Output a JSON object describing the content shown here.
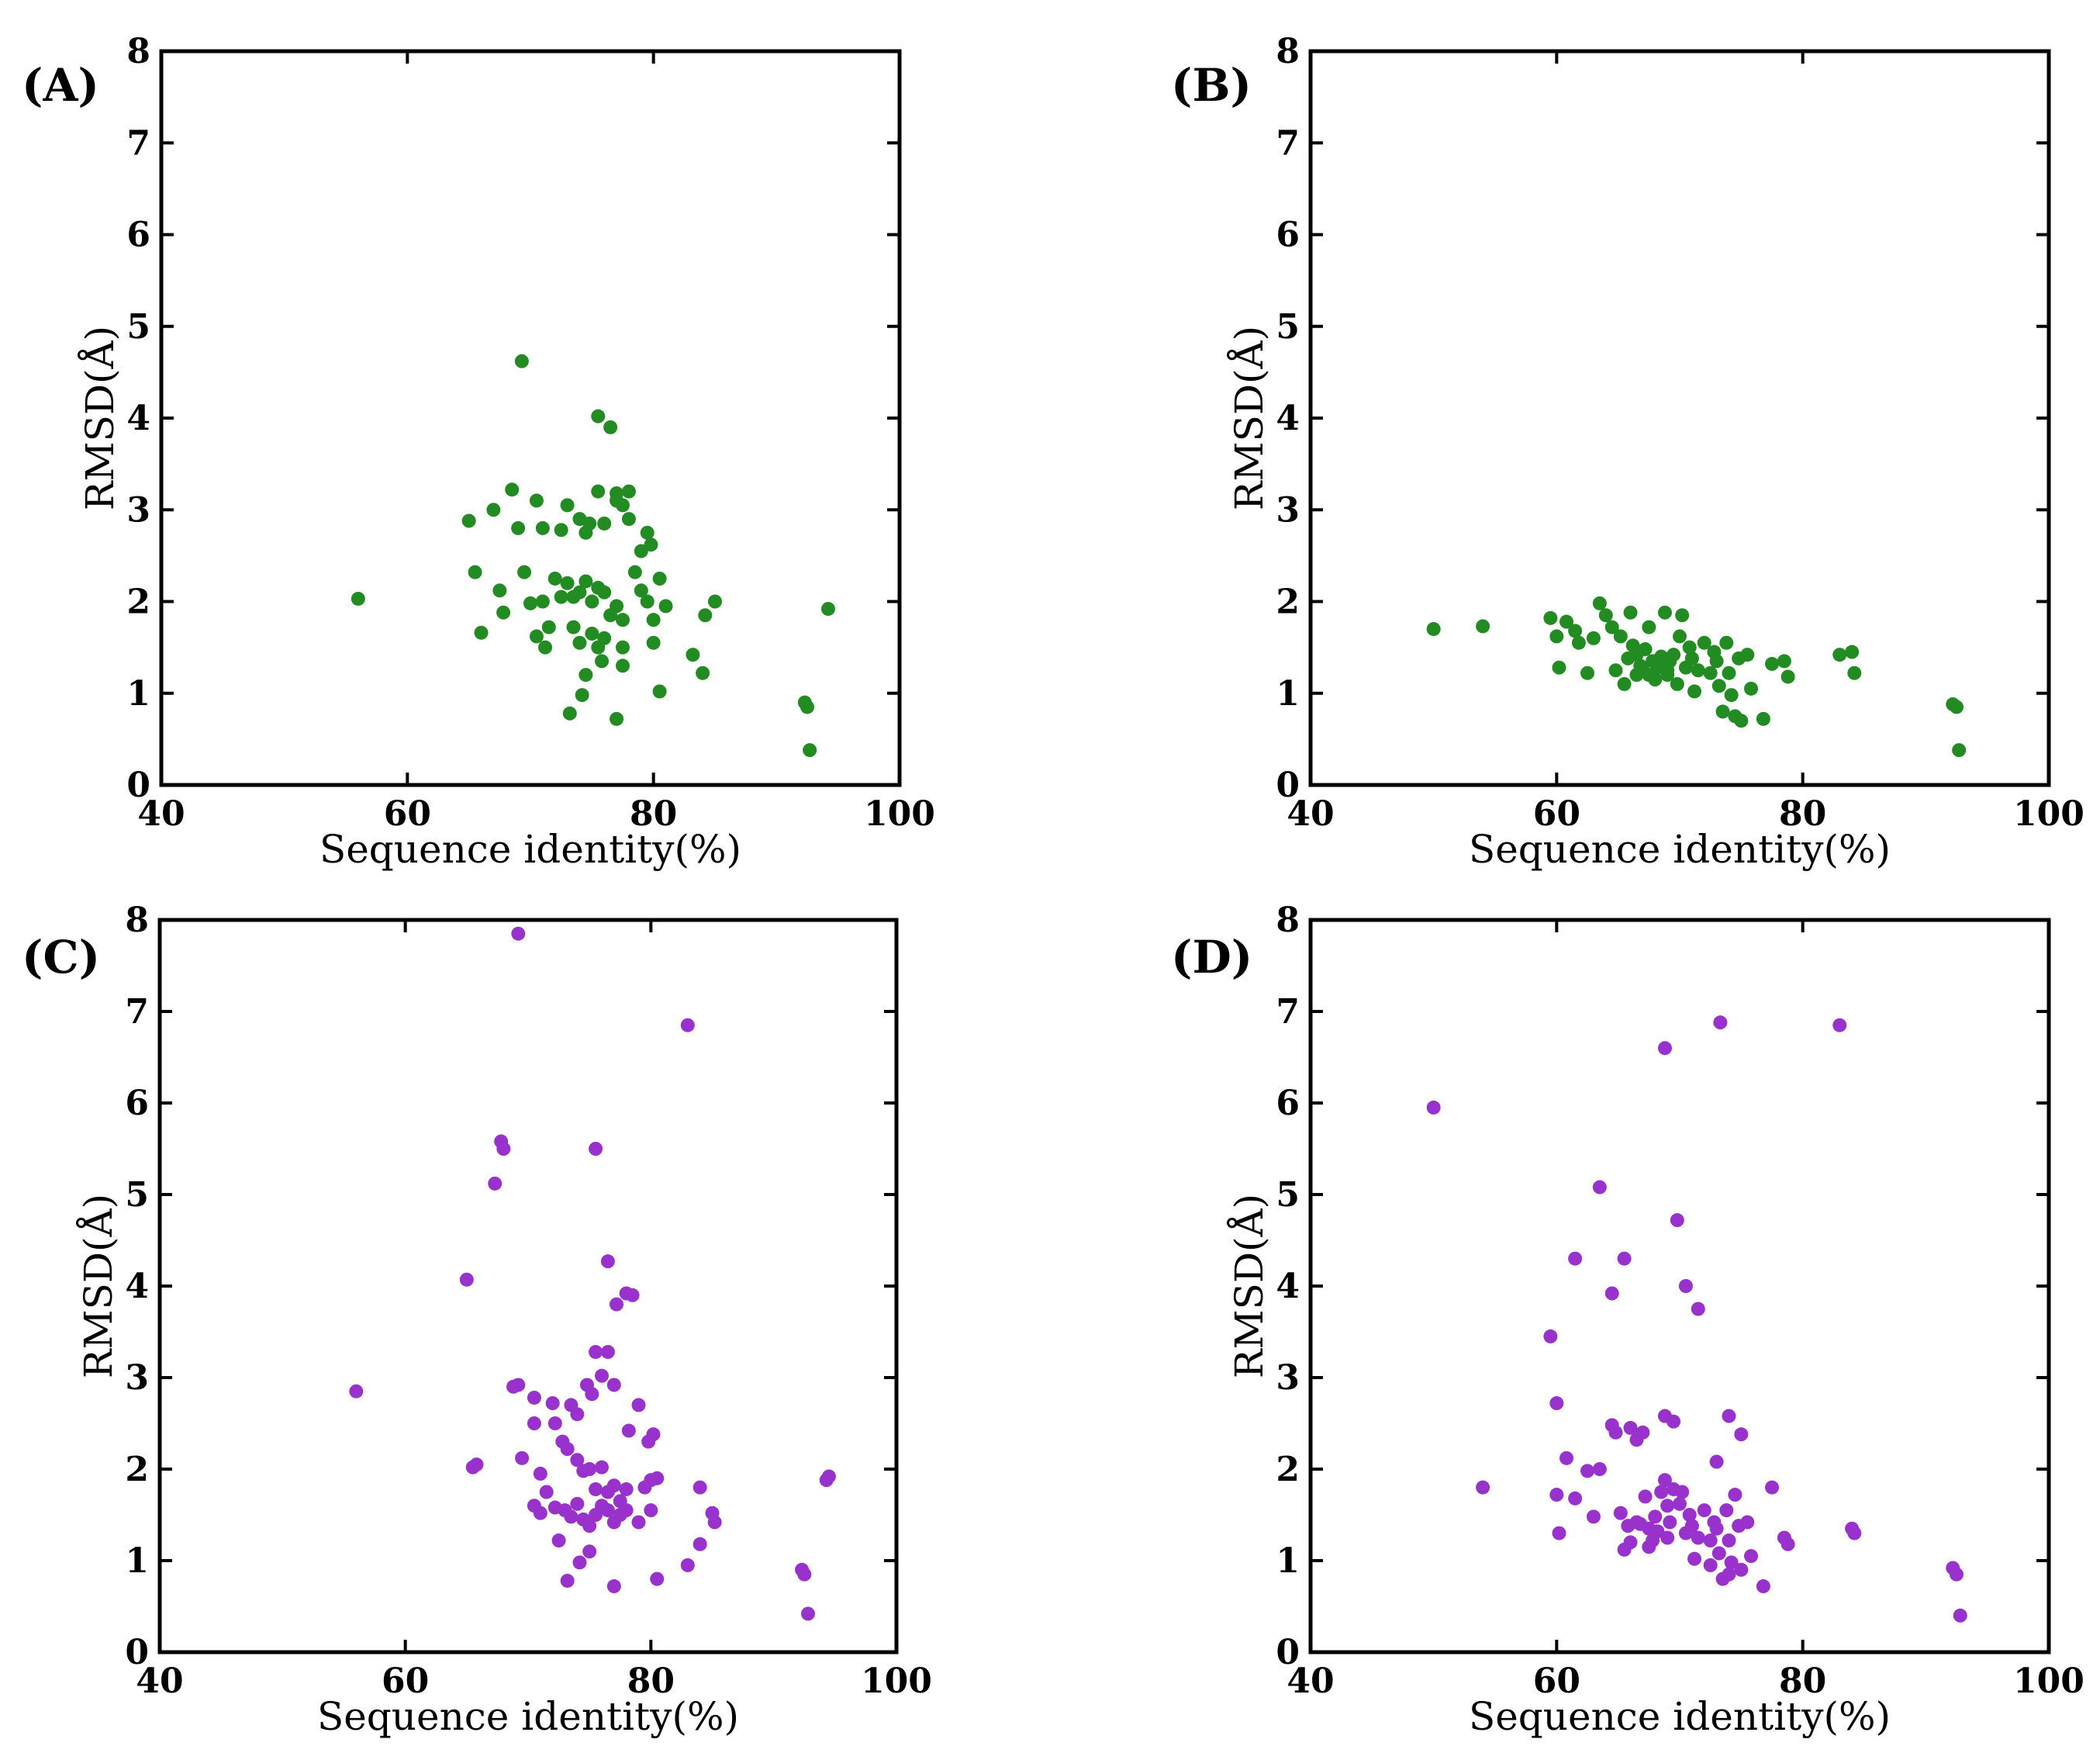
{
  "chart_data": [
    {
      "type": "scatter",
      "panel_label": "(A)",
      "xlabel": "Sequence identity(%)",
      "ylabel": "RMSD(Å)",
      "xlim": [
        40,
        100
      ],
      "ylim": [
        0,
        8
      ],
      "xticks": [
        "40",
        "60",
        "80",
        "100"
      ],
      "yticks": [
        "0",
        "1",
        "2",
        "3",
        "4",
        "5",
        "6",
        "7",
        "8"
      ],
      "color": "#228B22",
      "points": [
        [
          56,
          2.03
        ],
        [
          69.3,
          4.62
        ],
        [
          75.5,
          4.02
        ],
        [
          76.5,
          3.9
        ],
        [
          65,
          2.88
        ],
        [
          67,
          3.0
        ],
        [
          68.5,
          3.22
        ],
        [
          69,
          2.8
        ],
        [
          70.5,
          3.1
        ],
        [
          71,
          2.8
        ],
        [
          72.5,
          2.78
        ],
        [
          73,
          3.05
        ],
        [
          74,
          2.9
        ],
        [
          74.5,
          2.75
        ],
        [
          74.8,
          2.85
        ],
        [
          75.5,
          3.2
        ],
        [
          76,
          2.85
        ],
        [
          77,
          3.1
        ],
        [
          77,
          3.18
        ],
        [
          77.5,
          3.05
        ],
        [
          78,
          3.2
        ],
        [
          78,
          2.9
        ],
        [
          79,
          2.55
        ],
        [
          79.5,
          2.75
        ],
        [
          79.8,
          2.62
        ],
        [
          65.5,
          2.32
        ],
        [
          67.5,
          2.12
        ],
        [
          67.8,
          1.88
        ],
        [
          69.5,
          2.32
        ],
        [
          70,
          1.98
        ],
        [
          71,
          2.0
        ],
        [
          72,
          2.25
        ],
        [
          72.5,
          2.05
        ],
        [
          73,
          2.2
        ],
        [
          73.5,
          2.05
        ],
        [
          74,
          2.1
        ],
        [
          74.5,
          2.22
        ],
        [
          75,
          2.0
        ],
        [
          75.5,
          2.15
        ],
        [
          76,
          2.1
        ],
        [
          76.5,
          1.85
        ],
        [
          77,
          1.95
        ],
        [
          77.5,
          1.8
        ],
        [
          78.5,
          2.32
        ],
        [
          79,
          2.12
        ],
        [
          79.5,
          2.0
        ],
        [
          80,
          1.8
        ],
        [
          80.5,
          2.25
        ],
        [
          81,
          1.95
        ],
        [
          66,
          1.66
        ],
        [
          70.5,
          1.62
        ],
        [
          71.2,
          1.5
        ],
        [
          71.5,
          1.72
        ],
        [
          73.5,
          1.72
        ],
        [
          74,
          1.55
        ],
        [
          74.5,
          1.2
        ],
        [
          75,
          1.65
        ],
        [
          75.5,
          1.5
        ],
        [
          75.8,
          1.35
        ],
        [
          76,
          1.6
        ],
        [
          77.5,
          1.5
        ],
        [
          77.5,
          1.3
        ],
        [
          80,
          1.55
        ],
        [
          83.2,
          1.42
        ],
        [
          84,
          1.22
        ],
        [
          84.2,
          1.85
        ],
        [
          85,
          2.0
        ],
        [
          73.2,
          0.78
        ],
        [
          74.2,
          0.98
        ],
        [
          77,
          0.72
        ],
        [
          80.5,
          1.02
        ],
        [
          92.3,
          0.9
        ],
        [
          92.5,
          0.85
        ],
        [
          92.7,
          0.38
        ],
        [
          94.2,
          1.92
        ]
      ]
    },
    {
      "type": "scatter",
      "panel_label": "(B)",
      "xlabel": "Sequence identity(%)",
      "ylabel": "RMSD(Å)",
      "xlim": [
        40,
        100
      ],
      "ylim": [
        0,
        8
      ],
      "xticks": [
        "40",
        "60",
        "80",
        "100"
      ],
      "yticks": [
        "0",
        "1",
        "2",
        "3",
        "4",
        "5",
        "6",
        "7",
        "8"
      ],
      "color": "#228B22",
      "points": [
        [
          50,
          1.7
        ],
        [
          54,
          1.73
        ],
        [
          59.5,
          1.82
        ],
        [
          60,
          1.62
        ],
        [
          60.2,
          1.28
        ],
        [
          60.8,
          1.78
        ],
        [
          61.5,
          1.68
        ],
        [
          61.8,
          1.55
        ],
        [
          62.5,
          1.22
        ],
        [
          63,
          1.6
        ],
        [
          63.5,
          1.98
        ],
        [
          64,
          1.85
        ],
        [
          64.5,
          1.72
        ],
        [
          64.8,
          1.25
        ],
        [
          65.2,
          1.62
        ],
        [
          65.5,
          1.1
        ],
        [
          65.8,
          1.38
        ],
        [
          66,
          1.88
        ],
        [
          66.2,
          1.52
        ],
        [
          66.5,
          1.42
        ],
        [
          66.8,
          1.3
        ],
        [
          67,
          1.25
        ],
        [
          67.2,
          1.48
        ],
        [
          67.5,
          1.72
        ],
        [
          67.8,
          1.35
        ],
        [
          68,
          1.15
        ],
        [
          68.2,
          1.28
        ],
        [
          68.5,
          1.4
        ],
        [
          68.8,
          1.88
        ],
        [
          69,
          1.2
        ],
        [
          69.2,
          1.35
        ],
        [
          69.5,
          1.42
        ],
        [
          69.8,
          1.1
        ],
        [
          70,
          1.62
        ],
        [
          70.2,
          1.85
        ],
        [
          70.5,
          1.28
        ],
        [
          70.8,
          1.5
        ],
        [
          71,
          1.38
        ],
        [
          71.2,
          1.02
        ],
        [
          71.5,
          1.25
        ],
        [
          72,
          1.55
        ],
        [
          72.5,
          1.22
        ],
        [
          72.8,
          1.45
        ],
        [
          73,
          1.35
        ],
        [
          73.2,
          1.08
        ],
        [
          73.5,
          0.8
        ],
        [
          73.8,
          1.55
        ],
        [
          74,
          1.22
        ],
        [
          74.2,
          0.98
        ],
        [
          74.5,
          0.75
        ],
        [
          74.8,
          1.38
        ],
        [
          75,
          0.7
        ],
        [
          75.5,
          1.42
        ],
        [
          75.8,
          1.05
        ],
        [
          76.8,
          0.72
        ],
        [
          77.5,
          1.32
        ],
        [
          78.5,
          1.35
        ],
        [
          78.8,
          1.18
        ],
        [
          83,
          1.42
        ],
        [
          84,
          1.45
        ],
        [
          84.2,
          1.22
        ],
        [
          92.2,
          0.88
        ],
        [
          92.5,
          0.85
        ],
        [
          92.7,
          0.38
        ],
        [
          68.2,
          1.3
        ],
        [
          67.5,
          1.2
        ],
        [
          69,
          1.25
        ],
        [
          66.5,
          1.2
        ]
      ]
    },
    {
      "type": "scatter",
      "panel_label": "(C)",
      "xlabel": "Sequence identity(%)",
      "ylabel": "RMSD(Å)",
      "xlim": [
        40,
        100
      ],
      "ylim": [
        0,
        8
      ],
      "xticks": [
        "40",
        "60",
        "80",
        "100"
      ],
      "yticks": [
        "0",
        "1",
        "2",
        "3",
        "4",
        "5",
        "6",
        "7",
        "8"
      ],
      "color": "#9932CC",
      "points": [
        [
          56,
          2.85
        ],
        [
          69.2,
          7.85
        ],
        [
          83,
          6.85
        ],
        [
          67.8,
          5.58
        ],
        [
          68,
          5.5
        ],
        [
          67.3,
          5.12
        ],
        [
          75.5,
          5.5
        ],
        [
          65,
          4.07
        ],
        [
          76.5,
          4.27
        ],
        [
          78,
          3.92
        ],
        [
          78.5,
          3.9
        ],
        [
          77.2,
          3.8
        ],
        [
          68.8,
          2.9
        ],
        [
          69.2,
          2.92
        ],
        [
          70.5,
          2.78
        ],
        [
          72,
          2.72
        ],
        [
          73.5,
          2.7
        ],
        [
          74,
          2.6
        ],
        [
          74.8,
          2.92
        ],
        [
          75.5,
          3.28
        ],
        [
          76,
          3.02
        ],
        [
          76.5,
          3.28
        ],
        [
          77,
          2.92
        ],
        [
          75.2,
          2.82
        ],
        [
          79,
          2.7
        ],
        [
          65.5,
          2.02
        ],
        [
          65.8,
          2.05
        ],
        [
          69.5,
          2.12
        ],
        [
          70.5,
          2.5
        ],
        [
          71,
          1.95
        ],
        [
          72.2,
          2.5
        ],
        [
          72.8,
          2.3
        ],
        [
          73.2,
          2.22
        ],
        [
          74,
          2.1
        ],
        [
          74.5,
          1.98
        ],
        [
          75,
          2.0
        ],
        [
          75.5,
          1.78
        ],
        [
          76,
          2.02
        ],
        [
          76.5,
          1.75
        ],
        [
          77,
          1.82
        ],
        [
          77.5,
          1.65
        ],
        [
          78,
          1.78
        ],
        [
          78.2,
          2.42
        ],
        [
          79.5,
          1.8
        ],
        [
          79.8,
          2.3
        ],
        [
          80,
          1.88
        ],
        [
          80.2,
          2.38
        ],
        [
          80.5,
          1.9
        ],
        [
          70.5,
          1.6
        ],
        [
          71,
          1.52
        ],
        [
          71.5,
          1.75
        ],
        [
          72.2,
          1.58
        ],
        [
          72.5,
          1.22
        ],
        [
          73,
          1.55
        ],
        [
          73.5,
          1.48
        ],
        [
          74,
          1.62
        ],
        [
          74.5,
          1.45
        ],
        [
          75,
          1.38
        ],
        [
          75.5,
          1.5
        ],
        [
          76,
          1.6
        ],
        [
          76.5,
          1.55
        ],
        [
          77,
          1.42
        ],
        [
          77.5,
          1.5
        ],
        [
          78,
          1.55
        ],
        [
          79,
          1.42
        ],
        [
          80,
          1.55
        ],
        [
          84,
          1.8
        ],
        [
          85,
          1.52
        ],
        [
          85.2,
          1.42
        ],
        [
          73.2,
          0.78
        ],
        [
          74.2,
          0.98
        ],
        [
          75,
          1.1
        ],
        [
          77,
          0.72
        ],
        [
          80.5,
          0.8
        ],
        [
          83,
          0.95
        ],
        [
          84,
          1.18
        ],
        [
          92.3,
          0.9
        ],
        [
          92.5,
          0.85
        ],
        [
          92.8,
          0.42
        ],
        [
          94.3,
          1.88
        ],
        [
          94.5,
          1.92
        ]
      ]
    },
    {
      "type": "scatter",
      "panel_label": "(D)",
      "xlabel": "Sequence identity(%)",
      "ylabel": "RMSD(Å)",
      "xlim": [
        40,
        100
      ],
      "ylim": [
        0,
        8
      ],
      "xticks": [
        "40",
        "60",
        "80",
        "100"
      ],
      "yticks": [
        "0",
        "1",
        "2",
        "3",
        "4",
        "5",
        "6",
        "7",
        "8"
      ],
      "color": "#9932CC",
      "points": [
        [
          50,
          5.95
        ],
        [
          73.3,
          6.88
        ],
        [
          83,
          6.85
        ],
        [
          68.8,
          6.6
        ],
        [
          63.5,
          5.08
        ],
        [
          69.8,
          4.72
        ],
        [
          61.5,
          4.3
        ],
        [
          65.5,
          4.3
        ],
        [
          70.5,
          4.0
        ],
        [
          64.5,
          3.92
        ],
        [
          71.5,
          3.75
        ],
        [
          59.5,
          3.45
        ],
        [
          60,
          2.72
        ],
        [
          64.5,
          2.48
        ],
        [
          64.8,
          2.4
        ],
        [
          66,
          2.45
        ],
        [
          66.5,
          2.32
        ],
        [
          67,
          2.4
        ],
        [
          68.8,
          2.58
        ],
        [
          69.5,
          2.52
        ],
        [
          73,
          2.08
        ],
        [
          74,
          2.58
        ],
        [
          75,
          2.38
        ],
        [
          54,
          1.8
        ],
        [
          60,
          1.72
        ],
        [
          60.2,
          1.3
        ],
        [
          60.8,
          2.12
        ],
        [
          61.5,
          1.68
        ],
        [
          62.5,
          1.98
        ],
        [
          63,
          1.48
        ],
        [
          63.5,
          2.0
        ],
        [
          65.2,
          1.52
        ],
        [
          65.5,
          1.12
        ],
        [
          65.8,
          1.38
        ],
        [
          66,
          1.2
        ],
        [
          66.5,
          1.42
        ],
        [
          66.8,
          1.4
        ],
        [
          67.2,
          1.7
        ],
        [
          67.5,
          1.35
        ],
        [
          67.8,
          1.22
        ],
        [
          68,
          1.48
        ],
        [
          68.2,
          1.32
        ],
        [
          68.5,
          1.75
        ],
        [
          68.8,
          1.88
        ],
        [
          69,
          1.6
        ],
        [
          69.2,
          1.42
        ],
        [
          69.5,
          1.78
        ],
        [
          70,
          1.62
        ],
        [
          70.2,
          1.75
        ],
        [
          70.5,
          1.3
        ],
        [
          70.8,
          1.5
        ],
        [
          71,
          1.38
        ],
        [
          71.2,
          1.02
        ],
        [
          71.5,
          1.25
        ],
        [
          72,
          1.55
        ],
        [
          72.5,
          1.22
        ],
        [
          72.8,
          1.42
        ],
        [
          73,
          1.35
        ],
        [
          73.2,
          1.08
        ],
        [
          73.5,
          0.8
        ],
        [
          73.8,
          1.55
        ],
        [
          74,
          1.22
        ],
        [
          74.2,
          0.98
        ],
        [
          74.5,
          1.72
        ],
        [
          74.8,
          1.38
        ],
        [
          75,
          0.9
        ],
        [
          75.5,
          1.42
        ],
        [
          75.8,
          1.05
        ],
        [
          76.8,
          0.72
        ],
        [
          77.5,
          1.8
        ],
        [
          78.5,
          1.25
        ],
        [
          78.8,
          1.18
        ],
        [
          84,
          1.35
        ],
        [
          84.2,
          1.3
        ],
        [
          92.2,
          0.92
        ],
        [
          92.5,
          0.85
        ],
        [
          92.8,
          0.4
        ],
        [
          67.5,
          1.15
        ],
        [
          69,
          1.25
        ],
        [
          72.5,
          0.95
        ],
        [
          74,
          0.85
        ]
      ]
    }
  ]
}
